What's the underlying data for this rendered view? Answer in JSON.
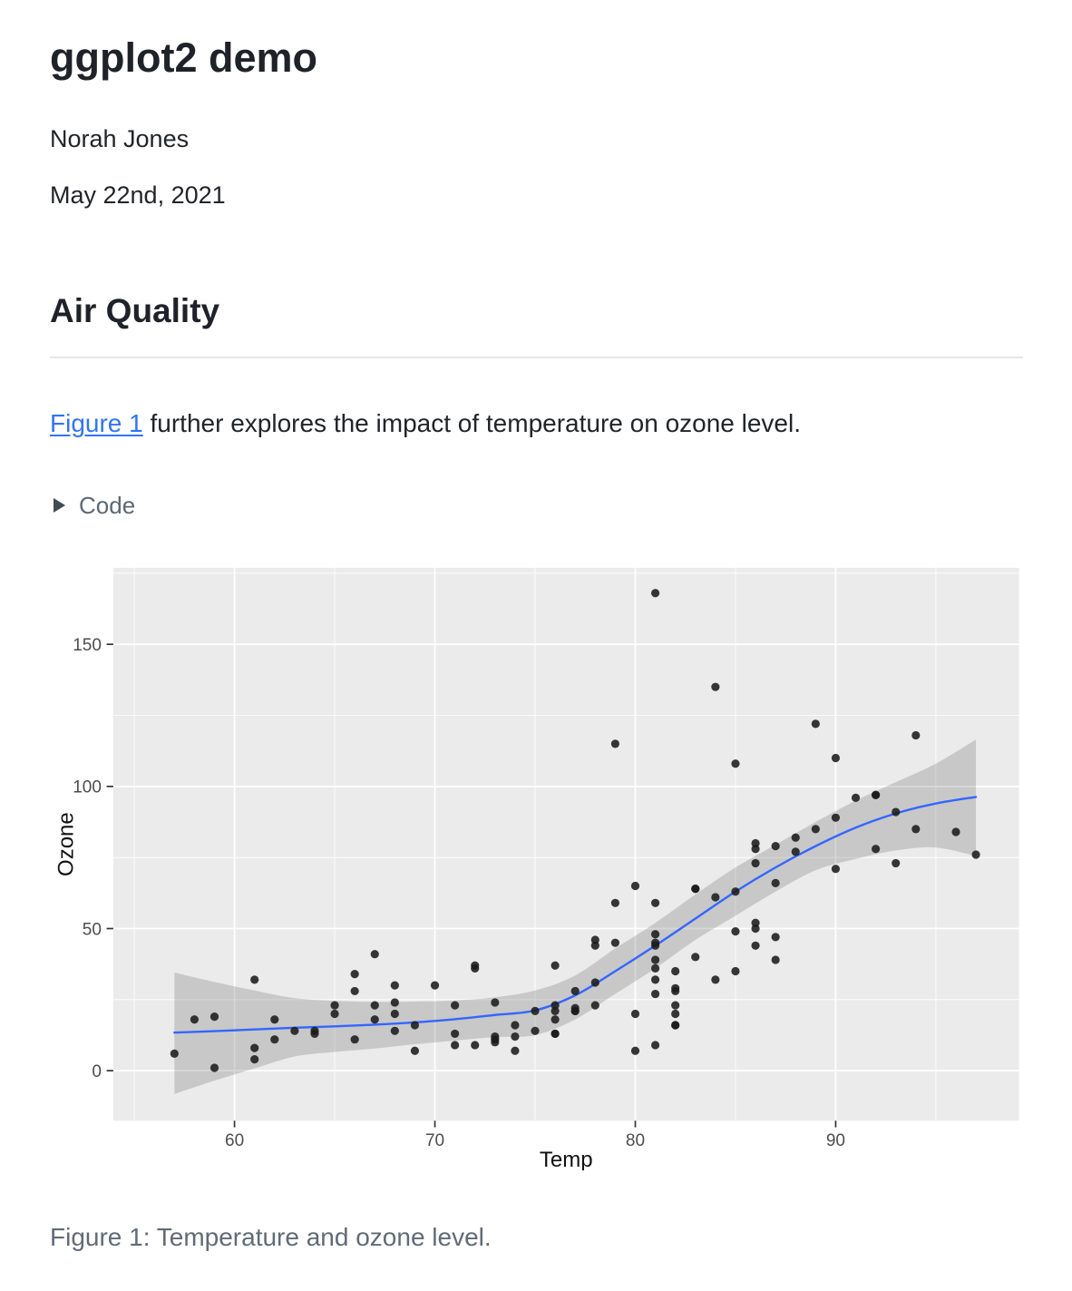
{
  "page": {
    "title": "ggplot2 demo",
    "author": "Norah Jones",
    "date": "May 22nd, 2021"
  },
  "section": {
    "heading": "Air Quality"
  },
  "intro": {
    "link_text": "Figure 1",
    "text_after_link": " further explores the impact of temperature on ozone level."
  },
  "code_block": {
    "summary_label": "Code",
    "collapsed": true
  },
  "figure": {
    "caption": "Figure 1: Temperature and ozone level."
  },
  "theme": {
    "link_color": "#2e74ff",
    "summary_color": "#5c6873",
    "caption_color": "#616b76",
    "rule_color": "#e4e7ea"
  },
  "chart_data": {
    "type": "scatter",
    "title": "",
    "xlabel": "Temp",
    "ylabel": "Ozone",
    "x_ticks": [
      60,
      70,
      80,
      90
    ],
    "x_minor_ticks": [
      55,
      65,
      75,
      85,
      95
    ],
    "y_ticks": [
      0,
      50,
      100,
      150
    ],
    "y_minor_ticks": [
      25,
      75,
      125,
      175
    ],
    "x_domain": [
      53.95,
      99.15
    ],
    "y_domain": [
      -17.6,
      176.9
    ],
    "grid": true,
    "legend": "none",
    "points": [
      [
        67,
        41
      ],
      [
        72,
        36
      ],
      [
        74,
        12
      ],
      [
        62,
        18
      ],
      [
        66,
        28
      ],
      [
        65,
        23
      ],
      [
        59,
        19
      ],
      [
        61,
        8
      ],
      [
        74,
        7
      ],
      [
        69,
        16
      ],
      [
        66,
        11
      ],
      [
        68,
        14
      ],
      [
        58,
        18
      ],
      [
        64,
        14
      ],
      [
        66,
        34
      ],
      [
        57,
        6
      ],
      [
        68,
        30
      ],
      [
        62,
        11
      ],
      [
        59,
        1
      ],
      [
        73,
        11
      ],
      [
        61,
        4
      ],
      [
        61,
        32
      ],
      [
        67,
        23
      ],
      [
        81,
        45
      ],
      [
        79,
        115
      ],
      [
        76,
        37
      ],
      [
        82,
        29
      ],
      [
        90,
        71
      ],
      [
        87,
        39
      ],
      [
        82,
        23
      ],
      [
        77,
        21
      ],
      [
        72,
        37
      ],
      [
        65,
        20
      ],
      [
        73,
        12
      ],
      [
        76,
        13
      ],
      [
        84,
        135
      ],
      [
        85,
        49
      ],
      [
        81,
        32
      ],
      [
        83,
        64
      ],
      [
        83,
        40
      ],
      [
        88,
        77
      ],
      [
        92,
        97
      ],
      [
        92,
        97
      ],
      [
        89,
        85
      ],
      [
        73,
        10
      ],
      [
        81,
        27
      ],
      [
        80,
        7
      ],
      [
        81,
        48
      ],
      [
        82,
        35
      ],
      [
        84,
        61
      ],
      [
        87,
        79
      ],
      [
        85,
        63
      ],
      [
        74,
        16
      ],
      [
        86,
        80
      ],
      [
        85,
        108
      ],
      [
        82,
        20
      ],
      [
        86,
        52
      ],
      [
        88,
        82
      ],
      [
        86,
        50
      ],
      [
        83,
        64
      ],
      [
        81,
        59
      ],
      [
        81,
        39
      ],
      [
        81,
        9
      ],
      [
        82,
        16
      ],
      [
        86,
        78
      ],
      [
        85,
        35
      ],
      [
        87,
        66
      ],
      [
        89,
        122
      ],
      [
        90,
        89
      ],
      [
        90,
        110
      ],
      [
        86,
        44
      ],
      [
        82,
        28
      ],
      [
        80,
        65
      ],
      [
        77,
        22
      ],
      [
        79,
        59
      ],
      [
        76,
        23
      ],
      [
        78,
        31
      ],
      [
        78,
        44
      ],
      [
        77,
        21
      ],
      [
        72,
        9
      ],
      [
        79,
        45
      ],
      [
        81,
        168
      ],
      [
        86,
        73
      ],
      [
        97,
        76
      ],
      [
        94,
        118
      ],
      [
        96,
        84
      ],
      [
        94,
        85
      ],
      [
        91,
        96
      ],
      [
        92,
        78
      ],
      [
        93,
        73
      ],
      [
        93,
        91
      ],
      [
        87,
        47
      ],
      [
        84,
        32
      ],
      [
        80,
        20
      ],
      [
        78,
        23
      ],
      [
        75,
        21
      ],
      [
        73,
        24
      ],
      [
        81,
        44
      ],
      [
        76,
        21
      ],
      [
        77,
        28
      ],
      [
        71,
        9
      ],
      [
        71,
        13
      ],
      [
        78,
        46
      ],
      [
        67,
        18
      ],
      [
        76,
        13
      ],
      [
        68,
        24
      ],
      [
        82,
        16
      ],
      [
        64,
        13
      ],
      [
        71,
        23
      ],
      [
        81,
        36
      ],
      [
        69,
        7
      ],
      [
        63,
        14
      ],
      [
        70,
        30
      ],
      [
        75,
        14
      ],
      [
        76,
        18
      ],
      [
        68,
        20
      ]
    ],
    "smooth": {
      "x": [
        57,
        59,
        61,
        63,
        65,
        67,
        69,
        71,
        73,
        75,
        77,
        79,
        81,
        83,
        85,
        87,
        89,
        91,
        93,
        95,
        97
      ],
      "fit": [
        13.4,
        13.9,
        14.5,
        15.1,
        15.6,
        16.2,
        17.0,
        18.1,
        19.6,
        21.2,
        26.5,
        35.0,
        44.0,
        53.5,
        63.0,
        71.5,
        79.0,
        85.5,
        90.5,
        94.0,
        96.3
      ],
      "upper": [
        34.5,
        31.2,
        28.2,
        25.5,
        24.6,
        24.2,
        24.3,
        24.7,
        25.8,
        28.2,
        33.5,
        43.0,
        52.0,
        62.0,
        71.5,
        79.5,
        87.5,
        95.0,
        101.5,
        108.0,
        116.5
      ],
      "lower": [
        -8.2,
        -3.5,
        0.8,
        5.0,
        6.6,
        7.8,
        9.3,
        10.6,
        11.8,
        12.5,
        18.0,
        27.0,
        36.0,
        46.0,
        54.5,
        63.0,
        70.5,
        74.5,
        77.5,
        78.5,
        75.5
      ]
    },
    "colors": {
      "panel": "#EBEBEB",
      "grid": "#FFFFFF",
      "ribbon": "rgba(110,110,110,0.28)",
      "smooth_line": "#3366FF",
      "point": "#1b1b1b",
      "tick_mark": "#333333",
      "tick_label": "#4D4D4D",
      "axis_title": "#111111"
    }
  }
}
